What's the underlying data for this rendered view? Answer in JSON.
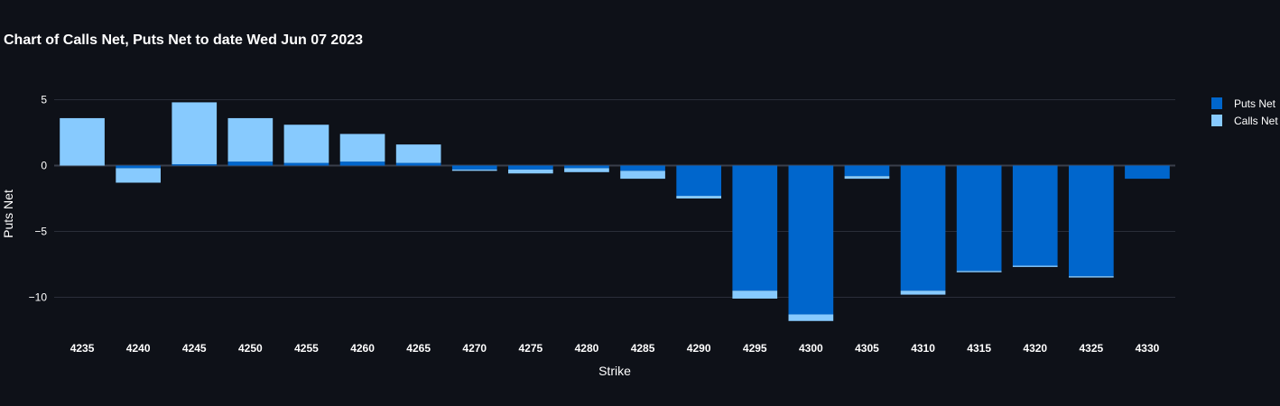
{
  "chart_data": {
    "type": "bar",
    "barmode": "relative",
    "title": "Chart of Calls Net, Puts Net to date Wed Jun 07 2023",
    "xlabel": "Strike",
    "ylabel": "Puts Net",
    "categories": [
      "4235",
      "4240",
      "4245",
      "4250",
      "4255",
      "4260",
      "4265",
      "4270",
      "4275",
      "4280",
      "4285",
      "4290",
      "4295",
      "4300",
      "4305",
      "4310",
      "4315",
      "4320",
      "4325",
      "4330"
    ],
    "series": [
      {
        "name": "Puts Net",
        "color": "#0066cc",
        "values": [
          0,
          -0.2,
          0.1,
          0.3,
          0.2,
          0.3,
          0.2,
          -0.3,
          -0.3,
          -0.2,
          -0.4,
          -2.3,
          -9.5,
          -11.3,
          -0.8,
          -9.5,
          -8.0,
          -7.6,
          -8.4,
          -1.0
        ]
      },
      {
        "name": "Calls Net",
        "color": "#87cafe",
        "values": [
          3.6,
          -1.1,
          4.7,
          3.3,
          2.9,
          2.1,
          1.4,
          -0.1,
          -0.3,
          -0.3,
          -0.6,
          -0.2,
          -0.6,
          -0.5,
          -0.2,
          -0.3,
          -0.1,
          -0.1,
          -0.1,
          0
        ]
      }
    ],
    "ylim": [
      -12.5,
      6.3
    ],
    "yticks": [
      5,
      0,
      -5,
      -10
    ],
    "ytick_labels": [
      "5",
      "0",
      "−5",
      "−10"
    ],
    "grid": true,
    "legend_position": "top-right"
  }
}
